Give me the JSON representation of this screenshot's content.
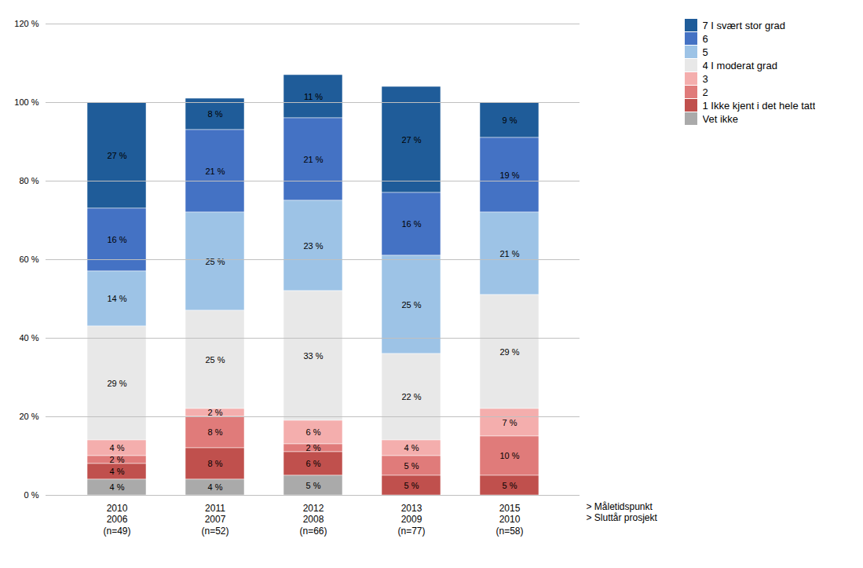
{
  "chart_data": {
    "type": "bar",
    "stacked": true,
    "categories": [
      "2010\n2006\n(n=49)",
      "2011\n2007\n(n=52)",
      "2012\n2008\n(n=66)",
      "2013\n2009\n(n=77)",
      "2015\n2010\n(n=58)"
    ],
    "annotations": [
      "> Måletidspunkt",
      "> Sluttår prosjekt"
    ],
    "series": [
      {
        "name": "7 I svært stor grad",
        "color": "#1F5C99",
        "values": [
          27,
          8,
          11,
          27,
          9
        ],
        "value_labels": [
          "27 %",
          "8 %",
          "11 %",
          "27 %",
          "9 %"
        ]
      },
      {
        "name": "6",
        "color": "#4472C4",
        "values": [
          16,
          21,
          21,
          16,
          19
        ],
        "value_labels": [
          "16 %",
          "21 %",
          "21 %",
          "16 %",
          "19 %"
        ]
      },
      {
        "name": "5",
        "color": "#9DC3E6",
        "values": [
          14,
          25,
          23,
          25,
          21
        ],
        "value_labels": [
          "14 %",
          "25 %",
          "23 %",
          "25 %",
          "21 %"
        ]
      },
      {
        "name": "4 I moderat grad",
        "color": "#E8E8E8",
        "values": [
          29,
          25,
          33,
          22,
          29
        ],
        "value_labels": [
          "29 %",
          "25 %",
          "33 %",
          "22 %",
          "29 %"
        ]
      },
      {
        "name": "3",
        "color": "#F4AEAD",
        "values": [
          4,
          2,
          6,
          4,
          7
        ],
        "value_labels": [
          "4 %",
          "2 %",
          "6 %",
          "4 %",
          "7 %"
        ]
      },
      {
        "name": "2",
        "color": "#E07B7A",
        "values": [
          2,
          8,
          2,
          5,
          10
        ],
        "value_labels": [
          "2 %",
          "8 %",
          "2 %",
          "5 %",
          "10 %"
        ]
      },
      {
        "name": "1 Ikke kjent i det hele tatt",
        "color": "#C0504D",
        "values": [
          4,
          8,
          6,
          5,
          5
        ],
        "value_labels": [
          "4 %",
          "8 %",
          "6 %",
          "5 %",
          "5 %"
        ]
      },
      {
        "name": "Vet ikke",
        "color": "#AAAAAA",
        "values": [
          4,
          4,
          5,
          0,
          0
        ],
        "value_labels": [
          "4 %",
          "4 %",
          "5 %",
          null,
          null
        ]
      }
    ],
    "ylim": [
      0,
      120
    ],
    "yticks": [
      {
        "value": 0,
        "label": "0 %"
      },
      {
        "value": 20,
        "label": "20 %"
      },
      {
        "value": 40,
        "label": "40 %"
      },
      {
        "value": 60,
        "label": "60 %"
      },
      {
        "value": 80,
        "label": "80 %"
      },
      {
        "value": 100,
        "label": "100 %"
      },
      {
        "value": 120,
        "label": "120 %"
      }
    ],
    "grid": true,
    "data_labels": true,
    "legend": "right"
  }
}
